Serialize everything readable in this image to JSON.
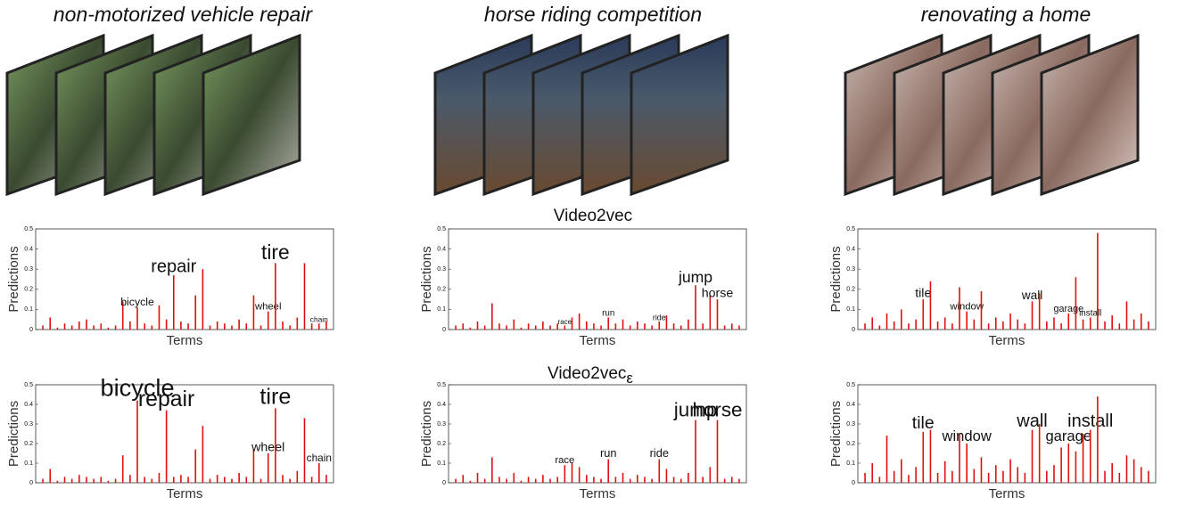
{
  "header": {
    "columns": [
      "non-motorized vehicle repair",
      "horse riding competition",
      "renovating a home"
    ],
    "rows": [
      {
        "text": "Video2vec"
      },
      {
        "text": "Video2vec",
        "subscript": "ε"
      }
    ]
  },
  "chart_data": [
    {
      "type": "bar",
      "color": "#e01010",
      "ylabel": "Predictions",
      "xlabel": "Terms",
      "ylim": [
        0,
        0.5
      ],
      "yticks": [
        0,
        0.1,
        0.2,
        0.3,
        0.4,
        0.5
      ],
      "values": [
        0.02,
        0.06,
        0.01,
        0.03,
        0.02,
        0.04,
        0.05,
        0.02,
        0.03,
        0.01,
        0.02,
        0.14,
        0.04,
        0.11,
        0.03,
        0.02,
        0.12,
        0.05,
        0.27,
        0.04,
        0.03,
        0.17,
        0.3,
        0.02,
        0.04,
        0.03,
        0.02,
        0.05,
        0.03,
        0.17,
        0.02,
        0.09,
        0.33,
        0.04,
        0.02,
        0.06,
        0.33,
        0.03,
        0.03,
        0.04
      ],
      "categories": [
        null,
        null,
        null,
        null,
        null,
        null,
        null,
        null,
        null,
        null,
        null,
        null,
        null,
        "bicycle",
        null,
        null,
        null,
        null,
        "repair",
        null,
        null,
        null,
        null,
        null,
        null,
        null,
        null,
        null,
        null,
        null,
        null,
        "wheel",
        "tire",
        null,
        null,
        null,
        null,
        null,
        "chain",
        null
      ]
    },
    {
      "type": "bar",
      "color": "#e01010",
      "ylabel": "Predictions",
      "xlabel": "Terms",
      "ylim": [
        0,
        0.5
      ],
      "yticks": [
        0,
        0.1,
        0.2,
        0.3,
        0.4,
        0.5
      ],
      "values": [
        0.02,
        0.03,
        0.01,
        0.04,
        0.02,
        0.13,
        0.03,
        0.02,
        0.05,
        0.01,
        0.03,
        0.02,
        0.04,
        0.02,
        0.03,
        0.02,
        0.06,
        0.08,
        0.04,
        0.03,
        0.02,
        0.06,
        0.03,
        0.05,
        0.02,
        0.04,
        0.03,
        0.02,
        0.04,
        0.07,
        0.03,
        0.02,
        0.05,
        0.22,
        0.03,
        0.17,
        0.15,
        0.02,
        0.03,
        0.02
      ],
      "categories": [
        null,
        null,
        null,
        null,
        null,
        null,
        null,
        null,
        null,
        null,
        null,
        null,
        null,
        null,
        null,
        "race",
        null,
        null,
        null,
        null,
        null,
        "run",
        null,
        null,
        null,
        null,
        null,
        null,
        "ride",
        null,
        null,
        null,
        null,
        "jump",
        null,
        null,
        "horse",
        null,
        null,
        null
      ]
    },
    {
      "type": "bar",
      "color": "#e01010",
      "ylabel": "Predictions",
      "xlabel": "Terms",
      "ylim": [
        0,
        0.5
      ],
      "yticks": [
        0,
        0.1,
        0.2,
        0.3,
        0.4,
        0.5
      ],
      "values": [
        0.03,
        0.06,
        0.02,
        0.08,
        0.04,
        0.1,
        0.03,
        0.05,
        0.15,
        0.24,
        0.04,
        0.06,
        0.03,
        0.21,
        0.09,
        0.05,
        0.19,
        0.03,
        0.06,
        0.04,
        0.08,
        0.05,
        0.03,
        0.14,
        0.18,
        0.04,
        0.06,
        0.03,
        0.08,
        0.26,
        0.05,
        0.06,
        0.48,
        0.04,
        0.07,
        0.03,
        0.14,
        0.05,
        0.08,
        0.04
      ],
      "categories": [
        null,
        null,
        null,
        null,
        null,
        null,
        null,
        null,
        "tile",
        null,
        null,
        null,
        null,
        null,
        "window",
        null,
        null,
        null,
        null,
        null,
        null,
        null,
        null,
        "wall",
        null,
        null,
        null,
        null,
        "garage",
        null,
        null,
        "install",
        null,
        null,
        null,
        null,
        null,
        null,
        null,
        null
      ]
    },
    {
      "type": "bar",
      "color": "#e01010",
      "ylabel": "Predictions",
      "xlabel": "Terms",
      "ylim": [
        0,
        0.5
      ],
      "yticks": [
        0,
        0.1,
        0.2,
        0.3,
        0.4,
        0.5
      ],
      "values": [
        0.02,
        0.07,
        0.01,
        0.03,
        0.02,
        0.04,
        0.03,
        0.02,
        0.03,
        0.01,
        0.02,
        0.14,
        0.04,
        0.42,
        0.03,
        0.02,
        0.05,
        0.37,
        0.03,
        0.04,
        0.03,
        0.17,
        0.29,
        0.02,
        0.04,
        0.03,
        0.02,
        0.05,
        0.03,
        0.17,
        0.02,
        0.15,
        0.38,
        0.04,
        0.02,
        0.06,
        0.33,
        0.03,
        0.1,
        0.04
      ],
      "categories": [
        null,
        null,
        null,
        null,
        null,
        null,
        null,
        null,
        null,
        null,
        null,
        null,
        null,
        "bicycle",
        null,
        null,
        null,
        "repair",
        null,
        null,
        null,
        null,
        null,
        null,
        null,
        null,
        null,
        null,
        null,
        null,
        null,
        "wheel",
        "tire",
        null,
        null,
        null,
        null,
        null,
        "chain",
        null
      ]
    },
    {
      "type": "bar",
      "color": "#e01010",
      "ylabel": "Predictions",
      "xlabel": "Terms",
      "ylim": [
        0,
        0.5
      ],
      "yticks": [
        0,
        0.1,
        0.2,
        0.3,
        0.4,
        0.5
      ],
      "values": [
        0.02,
        0.04,
        0.01,
        0.05,
        0.02,
        0.13,
        0.03,
        0.02,
        0.05,
        0.01,
        0.03,
        0.02,
        0.04,
        0.02,
        0.03,
        0.09,
        0.1,
        0.08,
        0.04,
        0.03,
        0.02,
        0.12,
        0.03,
        0.05,
        0.02,
        0.04,
        0.03,
        0.02,
        0.12,
        0.07,
        0.03,
        0.02,
        0.05,
        0.32,
        0.03,
        0.08,
        0.32,
        0.02,
        0.03,
        0.02
      ],
      "categories": [
        null,
        null,
        null,
        null,
        null,
        null,
        null,
        null,
        null,
        null,
        null,
        null,
        null,
        null,
        null,
        "race",
        null,
        null,
        null,
        null,
        null,
        "run",
        null,
        null,
        null,
        null,
        null,
        null,
        "ride",
        null,
        null,
        null,
        null,
        "jump",
        null,
        null,
        "horse",
        null,
        null,
        null
      ]
    },
    {
      "type": "bar",
      "color": "#e01010",
      "ylabel": "Predictions",
      "xlabel": "Terms",
      "ylim": [
        0,
        0.5
      ],
      "yticks": [
        0,
        0.1,
        0.2,
        0.3,
        0.4,
        0.5
      ],
      "values": [
        0.05,
        0.1,
        0.03,
        0.24,
        0.06,
        0.12,
        0.04,
        0.08,
        0.26,
        0.27,
        0.05,
        0.11,
        0.06,
        0.25,
        0.2,
        0.07,
        0.13,
        0.05,
        0.09,
        0.06,
        0.12,
        0.08,
        0.05,
        0.27,
        0.3,
        0.06,
        0.09,
        0.18,
        0.2,
        0.16,
        0.25,
        0.27,
        0.44,
        0.06,
        0.1,
        0.05,
        0.14,
        0.12,
        0.08,
        0.06
      ],
      "categories": [
        null,
        null,
        null,
        null,
        null,
        null,
        null,
        null,
        "tile",
        null,
        null,
        null,
        null,
        null,
        "window",
        null,
        null,
        null,
        null,
        null,
        null,
        null,
        null,
        "wall",
        null,
        null,
        null,
        null,
        "garage",
        null,
        null,
        "install",
        null,
        null,
        null,
        null,
        null,
        null,
        null,
        null
      ]
    }
  ]
}
